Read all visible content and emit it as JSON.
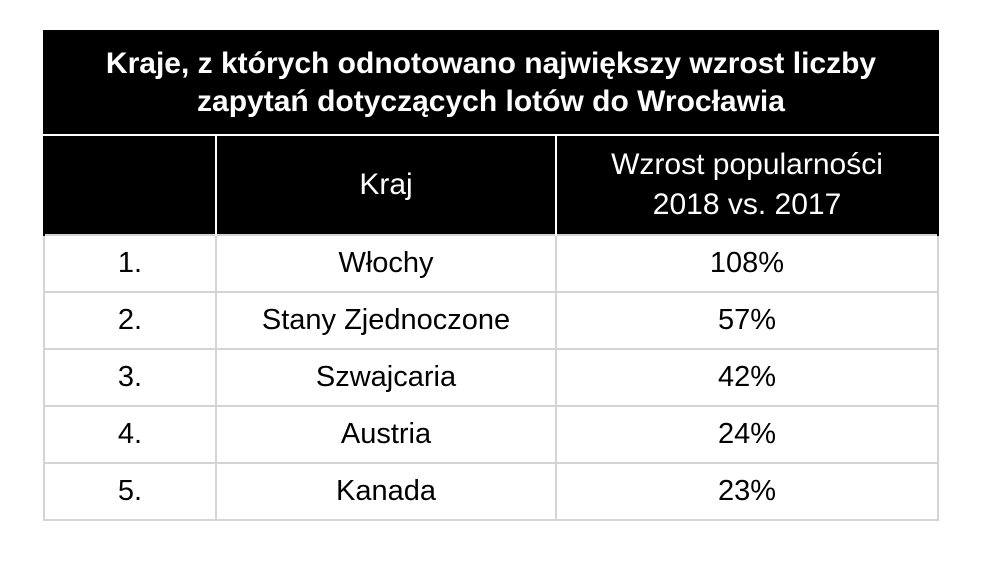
{
  "title": "Kraje, z których odnotowano największy wzrost liczby zapytań dotyczących lotów do Wrocławia",
  "columns": {
    "rank": "",
    "country": "Kraj",
    "growth_line1": "Wzrost popularności",
    "growth_line2": "2018 vs. 2017"
  },
  "rows": [
    {
      "rank": "1.",
      "country": "Włochy",
      "growth": "108%"
    },
    {
      "rank": "2.",
      "country": "Stany Zjednoczone",
      "growth": "57%"
    },
    {
      "rank": "3.",
      "country": "Szwajcaria",
      "growth": "42%"
    },
    {
      "rank": "4.",
      "country": "Austria",
      "growth": "24%"
    },
    {
      "rank": "5.",
      "country": "Kanada",
      "growth": "23%"
    }
  ],
  "colors": {
    "header_background": "#000000",
    "header_text": "#ffffff",
    "grid": "#d4d4d4"
  }
}
